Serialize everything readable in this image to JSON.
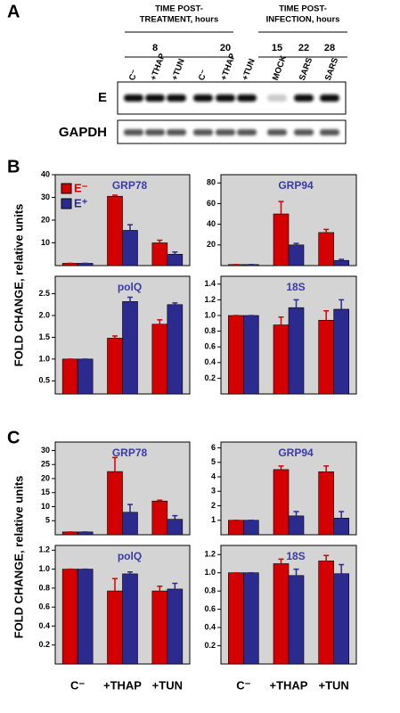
{
  "panel_labels": [
    "A",
    "B",
    "C"
  ],
  "blot": {
    "headers": [
      [
        "TIME POST-",
        "TREATMENT, hours"
      ],
      [
        "TIME POST-",
        "INFECTION, hours"
      ]
    ],
    "times": [
      "8",
      "20",
      "15",
      "22",
      "28"
    ],
    "lanes": [
      "C⁻",
      "+THAP",
      "+TUN",
      "C⁻",
      "+THAP",
      "+TUN",
      "MOCK",
      "SARS",
      "SARS"
    ],
    "rows": [
      "E",
      "GAPDH"
    ]
  },
  "y_axis_labels": [
    "FOLD CHANGE, relative units",
    "FOLD CHANGE, relative units"
  ],
  "chart_data": [
    {
      "type": "bar",
      "title": "GRP78",
      "categories": [
        null,
        null,
        null
      ],
      "ylim": [
        0,
        40
      ],
      "yticks": [
        10,
        20,
        30,
        40
      ],
      "legend": "upper left",
      "series": [
        {
          "name": "E⁻",
          "color": "#d40000",
          "values": [
            1,
            30.5,
            10
          ],
          "errors": [
            0,
            0.5,
            1.2
          ]
        },
        {
          "name": "E⁺",
          "color": "#2b2b8f",
          "values": [
            1,
            15.5,
            5
          ],
          "errors": [
            0,
            2.5,
            1
          ]
        }
      ]
    },
    {
      "type": "bar",
      "title": "GRP94",
      "categories": [
        null,
        null,
        null
      ],
      "ylim": [
        0,
        88
      ],
      "yticks": [
        20,
        40,
        60,
        80
      ],
      "series": [
        {
          "color": "#d40000",
          "values": [
            1,
            50,
            32
          ],
          "errors": [
            0,
            12,
            3
          ]
        },
        {
          "color": "#2b2b8f",
          "values": [
            1,
            20,
            5
          ],
          "errors": [
            0,
            1.5,
            1
          ]
        }
      ]
    },
    {
      "type": "bar",
      "title": "polQ",
      "categories": [
        null,
        null,
        null
      ],
      "ylim": [
        0.2,
        2.9
      ],
      "yticks": [
        0.5,
        {
          "value": 1,
          "label": "1.0"
        },
        1.5,
        {
          "value": 2,
          "label": "2.0"
        },
        2.5
      ],
      "series": [
        {
          "color": "#d40000",
          "values": [
            1,
            1.48,
            1.8
          ],
          "errors": [
            0,
            0.05,
            0.1
          ]
        },
        {
          "color": "#2b2b8f",
          "values": [
            1,
            2.32,
            2.25
          ],
          "errors": [
            0,
            0.1,
            0.04
          ]
        }
      ]
    },
    {
      "type": "bar",
      "title": "18S",
      "categories": [
        null,
        null,
        null
      ],
      "ylim": [
        0,
        1.5
      ],
      "yticks": [
        0.2,
        0.4,
        0.6,
        0.8,
        {
          "value": 1,
          "label": "1.0"
        },
        1.2,
        1.4
      ],
      "series": [
        {
          "color": "#d40000",
          "values": [
            1,
            0.88,
            0.94
          ],
          "errors": [
            0,
            0.1,
            0.12
          ]
        },
        {
          "color": "#2b2b8f",
          "values": [
            1,
            1.1,
            1.08
          ],
          "errors": [
            0,
            0.1,
            0.12
          ]
        }
      ]
    },
    {
      "type": "bar",
      "title": "GRP78",
      "categories": [
        null,
        null,
        null
      ],
      "ylim": [
        0,
        33
      ],
      "yticks": [
        5,
        10,
        15,
        20,
        25,
        30
      ],
      "series": [
        {
          "color": "#d40000",
          "values": [
            1,
            22.5,
            12
          ],
          "errors": [
            0,
            5,
            0.3
          ]
        },
        {
          "color": "#2b2b8f",
          "values": [
            1,
            8,
            5.5
          ],
          "errors": [
            0,
            2.8,
            1.3
          ]
        }
      ]
    },
    {
      "type": "bar",
      "title": "GRP94",
      "categories": [
        null,
        null,
        null
      ],
      "ylim": [
        0,
        6.4
      ],
      "yticks": [
        1,
        2,
        3,
        4,
        5,
        6
      ],
      "series": [
        {
          "color": "#d40000",
          "values": [
            1,
            4.5,
            4.35
          ],
          "errors": [
            0,
            0.25,
            0.4
          ]
        },
        {
          "color": "#2b2b8f",
          "values": [
            1,
            1.3,
            1.15
          ],
          "errors": [
            0,
            0.3,
            0.45
          ]
        }
      ]
    },
    {
      "type": "bar",
      "title": "polQ",
      "categories": [
        "C⁻",
        "+THAP",
        "+TUN"
      ],
      "ylim": [
        0,
        1.25
      ],
      "yticks": [
        0.2,
        0.4,
        0.6,
        0.8,
        {
          "value": 1,
          "label": "1.0"
        },
        1.2
      ],
      "series": [
        {
          "color": "#d40000",
          "values": [
            1,
            0.77,
            0.77
          ],
          "errors": [
            0,
            0.13,
            0.05
          ]
        },
        {
          "color": "#2b2b8f",
          "values": [
            1,
            0.95,
            0.79
          ],
          "errors": [
            0,
            0.02,
            0.06
          ]
        }
      ]
    },
    {
      "type": "bar",
      "title": "18S",
      "categories": [
        "C⁻",
        "+THAP",
        "+TUN"
      ],
      "ylim": [
        0,
        1.3
      ],
      "yticks": [
        0.2,
        0.4,
        0.6,
        0.8,
        {
          "value": 1,
          "label": "1.0"
        },
        1.2
      ],
      "series": [
        {
          "color": "#d40000",
          "values": [
            1,
            1.1,
            1.13
          ],
          "errors": [
            0,
            0.05,
            0.06
          ]
        },
        {
          "color": "#2b2b8f",
          "values": [
            1,
            0.97,
            0.99
          ],
          "errors": [
            0,
            0.07,
            0.1
          ]
        }
      ]
    }
  ]
}
